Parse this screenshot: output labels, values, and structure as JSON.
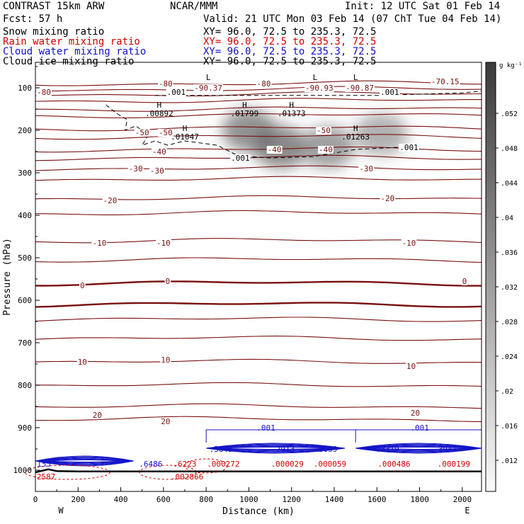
{
  "header": {
    "model": "CONTRAST 15km ARW",
    "fcst": "Fcst:   57 h",
    "center": "NCAR/MMM",
    "init": "Init: 12 UTC Sat 01 Feb 14",
    "valid": "Valid: 21 UTC Mon 03 Feb 14 (07 ChT Tue 04 Feb 14)",
    "fields": [
      {
        "name": "Snow mixing ratio",
        "xy": "XY=  96.0, 72.5 to 235.3, 72.5",
        "color": "#000000"
      },
      {
        "name": "Rain water mixing ratio",
        "xy": "XY=  96.0, 72.5 to 235.3, 72.5",
        "color": "#d40000"
      },
      {
        "name": "Cloud water mixing ratio",
        "xy": "XY=  96.0, 72.5 to 235.3, 72.5",
        "color": "#1010c8"
      },
      {
        "name": "Cloud ice mixing ratio",
        "xy": "XY=  96.0, 72.5 to 235.3, 72.5",
        "color": "#000000"
      }
    ]
  },
  "chart_data": {
    "type": "contour",
    "xlabel": "Distance (km)",
    "ylabel": "Pressure (hPa)",
    "xlim": [
      0,
      2090
    ],
    "ylim": [
      1050,
      40
    ],
    "x_ticks": [
      0,
      200,
      400,
      600,
      800,
      1000,
      1200,
      1400,
      1600,
      1800,
      2000
    ],
    "y_ticks": [
      100,
      200,
      300,
      400,
      500,
      600,
      700,
      800,
      900,
      1000
    ],
    "x_end_labels": {
      "left": "W",
      "right": "E"
    },
    "colorbar": {
      "unit": "g kg⁻¹",
      "ticks": [
        ".052",
        ".048",
        ".044",
        ".04",
        ".036",
        ".032",
        ".028",
        ".024",
        ".02",
        ".016",
        ".012"
      ]
    },
    "temperature_labels": [
      {
        "text": "-80",
        "x": 40,
        "p": 110
      },
      {
        "text": "-80",
        "x": 610,
        "p": 90
      },
      {
        "text": "-80",
        "x": 1070,
        "p": 90
      },
      {
        "text": "-70.15",
        "x": 1920,
        "p": 85
      },
      {
        "text": "-90.37",
        "x": 810,
        "p": 100
      },
      {
        "text": "-90.93",
        "x": 1330,
        "p": 100
      },
      {
        "text": "-90.87",
        "x": 1520,
        "p": 100
      },
      {
        "text": "-50",
        "x": 500,
        "p": 205
      },
      {
        "text": "-50",
        "x": 610,
        "p": 205
      },
      {
        "text": "-50",
        "x": 1350,
        "p": 200
      },
      {
        "text": "-40",
        "x": 580,
        "p": 250
      },
      {
        "text": "-40",
        "x": 1120,
        "p": 245
      },
      {
        "text": "-40",
        "x": 1360,
        "p": 245
      },
      {
        "text": "-30",
        "x": 470,
        "p": 290
      },
      {
        "text": "-30",
        "x": 570,
        "p": 295
      },
      {
        "text": "-30",
        "x": 1550,
        "p": 290
      },
      {
        "text": "-20",
        "x": 350,
        "p": 365
      },
      {
        "text": "-20",
        "x": 1650,
        "p": 360
      },
      {
        "text": "-10",
        "x": 300,
        "p": 465
      },
      {
        "text": "-10",
        "x": 600,
        "p": 465
      },
      {
        "text": "-10",
        "x": 1750,
        "p": 465
      },
      {
        "text": "0",
        "x": 220,
        "p": 565
      },
      {
        "text": "0",
        "x": 620,
        "p": 555
      },
      {
        "text": "0",
        "x": 2010,
        "p": 555
      },
      {
        "text": "10",
        "x": 220,
        "p": 745
      },
      {
        "text": "10",
        "x": 610,
        "p": 740
      },
      {
        "text": "10",
        "x": 1760,
        "p": 755
      },
      {
        "text": "20",
        "x": 290,
        "p": 870
      },
      {
        "text": "20",
        "x": 610,
        "p": 885
      },
      {
        "text": "20",
        "x": 1780,
        "p": 865
      }
    ],
    "extrema_labels": [
      {
        "mark": "H",
        "value": ".00892",
        "x": 580,
        "p": 150
      },
      {
        "mark": "H",
        "value": ".01799",
        "x": 980,
        "p": 150
      },
      {
        "mark": "H",
        "value": ".01373",
        "x": 1200,
        "p": 150
      },
      {
        "mark": "H",
        "value": ".01047",
        "x": 700,
        "p": 205
      },
      {
        "mark": "H",
        "value": ".01263",
        "x": 1500,
        "p": 205
      },
      {
        "mark": "L",
        "value": "",
        "x": 810,
        "p": 85
      },
      {
        "mark": "L",
        "value": "",
        "x": 1310,
        "p": 85
      },
      {
        "mark": "L",
        "value": "",
        "x": 1500,
        "p": 85
      }
    ],
    "ice_labels": [
      {
        "text": ".001",
        "x": 660,
        "p": 110
      },
      {
        "text": ".001",
        "x": 1660,
        "p": 110
      },
      {
        "text": ".001",
        "x": 960,
        "p": 265
      },
      {
        "text": ".001",
        "x": 1750,
        "p": 240
      }
    ],
    "cloud_labels": [
      {
        "text": "155",
        "x": 40,
        "p": 985
      },
      {
        "text": ".6486",
        "x": 540,
        "p": 985
      },
      {
        "text": ".3843",
        "x": 870,
        "p": 950
      },
      {
        "text": ".2913",
        "x": 1160,
        "p": 950
      },
      {
        "text": ".3059",
        "x": 1360,
        "p": 950
      },
      {
        "text": ".3319",
        "x": 1650,
        "p": 950
      },
      {
        "text": ".3941",
        "x": 1920,
        "p": 950
      },
      {
        "text": ".001",
        "x": 1080,
        "p": 900
      },
      {
        "text": ".001",
        "x": 1800,
        "p": 900
      }
    ],
    "rain_labels": [
      {
        "text": "2587",
        "x": 50,
        "p": 1015
      },
      {
        "text": ".6223",
        "x": 700,
        "p": 985
      },
      {
        "text": ".002866",
        "x": 710,
        "p": 1015
      },
      {
        "text": ".000272",
        "x": 880,
        "p": 985
      },
      {
        "text": ".000029",
        "x": 1180,
        "p": 985
      },
      {
        "text": ".000059",
        "x": 1380,
        "p": 985
      },
      {
        "text": ".000486",
        "x": 1680,
        "p": 985
      },
      {
        "text": ".000199",
        "x": 1960,
        "p": 985
      }
    ],
    "temperature_contours": [
      {
        "value": -80,
        "p": 90
      },
      {
        "value": -80,
        "p": 103
      },
      {
        "value": -80,
        "p": 115
      },
      {
        "value": -70,
        "p": 130
      },
      {
        "value": -60,
        "p": 150
      },
      {
        "value": -60,
        "p": 165
      },
      {
        "value": -50,
        "p": 195
      },
      {
        "value": -50,
        "p": 215
      },
      {
        "value": -40,
        "p": 245
      },
      {
        "value": -40,
        "p": 265
      },
      {
        "value": -30,
        "p": 290
      },
      {
        "value": -30,
        "p": 315
      },
      {
        "value": -20,
        "p": 360
      },
      {
        "value": -20,
        "p": 395
      },
      {
        "value": -10,
        "p": 460
      },
      {
        "value": -10,
        "p": 505
      },
      {
        "value": 0,
        "p": 560
      },
      {
        "value": 0,
        "p": 610
      },
      {
        "value": 10,
        "p": 645
      },
      {
        "value": 10,
        "p": 690
      },
      {
        "value": 10,
        "p": 745
      },
      {
        "value": 20,
        "p": 800
      },
      {
        "value": 20,
        "p": 850
      },
      {
        "value": 20,
        "p": 880
      }
    ],
    "snow_maxima": [
      {
        "x": 1000,
        "p": 200,
        "value": 0.017
      },
      {
        "x": 1150,
        "p": 240,
        "value": 0.018
      },
      {
        "x": 1370,
        "p": 240,
        "value": 0.015
      },
      {
        "x": 1620,
        "p": 210,
        "value": 0.012
      }
    ]
  }
}
